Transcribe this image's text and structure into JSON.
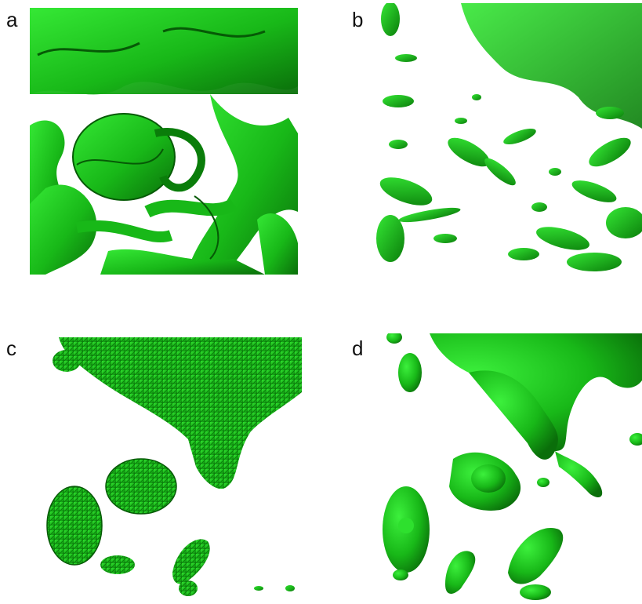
{
  "panels": [
    {
      "label": "a"
    },
    {
      "label": "b"
    },
    {
      "label": "c"
    },
    {
      "label": "d"
    }
  ],
  "colors": {
    "structure_fill": "#1fd61f",
    "structure_dark": "#0a7d0a",
    "structure_shadow": "#065a06",
    "background": "#ffffff"
  }
}
